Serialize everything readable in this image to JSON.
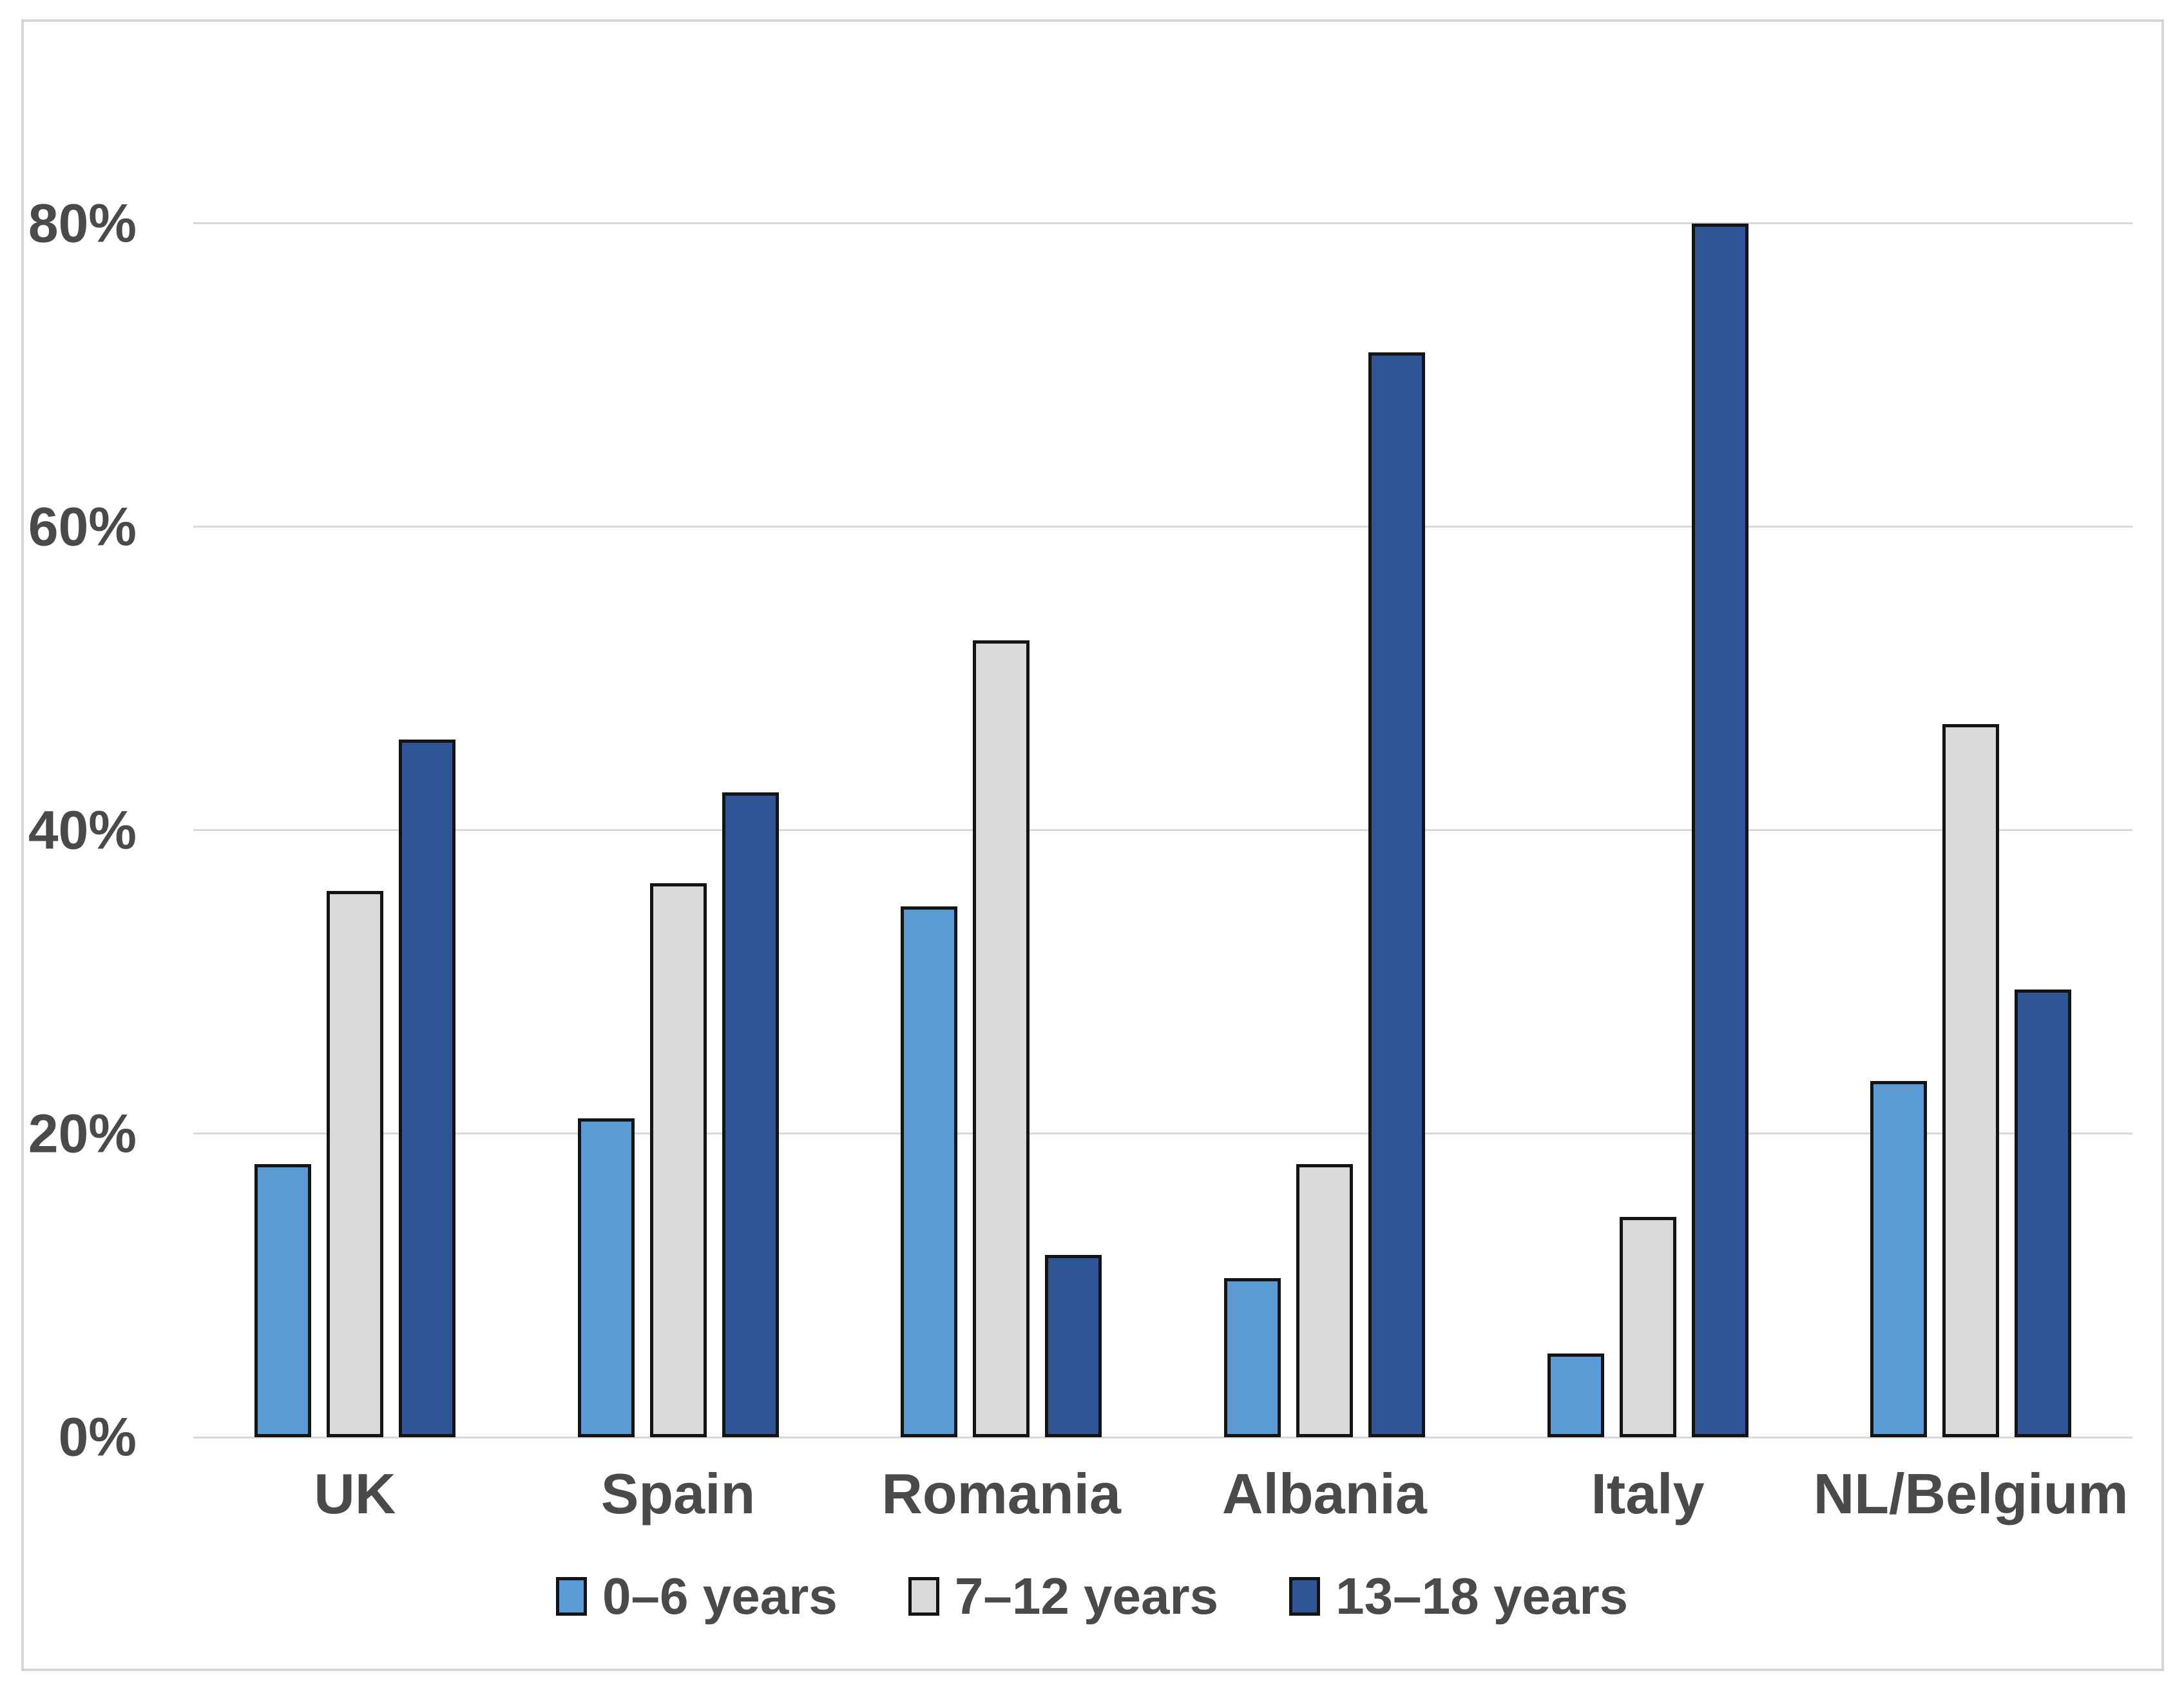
{
  "chart_data": {
    "type": "bar",
    "title": "",
    "xlabel": "",
    "ylabel": "",
    "categories": [
      "UK",
      "Spain",
      "Romania",
      "Albania",
      "Italy",
      "NL/Belgium"
    ],
    "series": [
      {
        "name": "0–6 years",
        "color": "#5B9BD5",
        "values": [
          18,
          21,
          35,
          10.5,
          5.5,
          23.5
        ]
      },
      {
        "name": "7–12 years",
        "color": "#D9D9D9",
        "values": [
          36,
          36.5,
          52.5,
          18,
          14.5,
          47
        ]
      },
      {
        "name": "13–18 years",
        "color": "#2F5597",
        "values": [
          46,
          42.5,
          12,
          71.5,
          80,
          29.5
        ]
      }
    ],
    "value_unit": "percent",
    "yticks": [
      0,
      20,
      40,
      60,
      80
    ],
    "ytick_suffix": "%",
    "ylim": [
      0,
      85
    ],
    "grid": true,
    "legend_position": "bottom"
  },
  "colors": {
    "background": "#FFFFFF",
    "text": "#4A4A4A",
    "gridline": "#D9D9D9",
    "bar_border": "#141414",
    "frame_border": "#D6D6D6"
  }
}
